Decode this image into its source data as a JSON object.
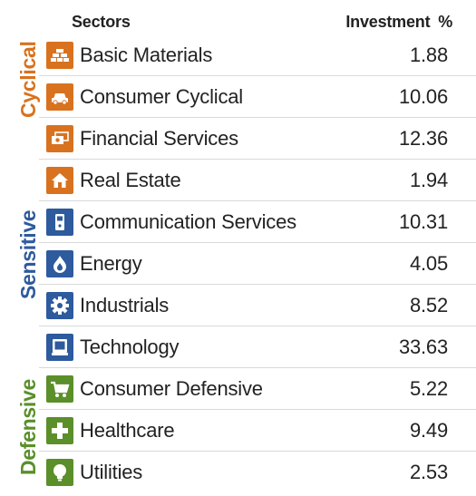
{
  "header": {
    "sectors": "Sectors",
    "investment": "Investment %"
  },
  "colors": {
    "cyclical": "#d8721f",
    "sensitive": "#2e5a9e",
    "defensive": "#5a8f2a"
  },
  "groups": [
    {
      "key": "cyclical",
      "label": "Cyclical",
      "color": "#d8721f"
    },
    {
      "key": "sensitive",
      "label": "Sensitive",
      "color": "#2e5a9e"
    },
    {
      "key": "defensive",
      "label": "Defensive",
      "color": "#5a8f2a"
    }
  ],
  "chart_data": {
    "type": "table",
    "columns": [
      "Sectors",
      "Investment %"
    ],
    "rows": [
      {
        "group": "Cyclical",
        "sector": "Basic Materials",
        "value": "1.88",
        "icon": "gold-bars-icon"
      },
      {
        "group": "Cyclical",
        "sector": "Consumer Cyclical",
        "value": "10.06",
        "icon": "car-icon"
      },
      {
        "group": "Cyclical",
        "sector": "Financial Services",
        "value": "12.36",
        "icon": "money-icon"
      },
      {
        "group": "Cyclical",
        "sector": "Real Estate",
        "value": "1.94",
        "icon": "house-icon"
      },
      {
        "group": "Sensitive",
        "sector": "Communication Services",
        "value": "10.31",
        "icon": "phone-icon"
      },
      {
        "group": "Sensitive",
        "sector": "Energy",
        "value": "4.05",
        "icon": "flame-icon"
      },
      {
        "group": "Sensitive",
        "sector": "Industrials",
        "value": "8.52",
        "icon": "gear-icon"
      },
      {
        "group": "Sensitive",
        "sector": "Technology",
        "value": "33.63",
        "icon": "computer-icon"
      },
      {
        "group": "Defensive",
        "sector": "Consumer Defensive",
        "value": "5.22",
        "icon": "shopping-cart-icon"
      },
      {
        "group": "Defensive",
        "sector": "Healthcare",
        "value": "9.49",
        "icon": "medical-cross-icon"
      },
      {
        "group": "Defensive",
        "sector": "Utilities",
        "value": "2.53",
        "icon": "light-bulb-icon"
      }
    ]
  }
}
